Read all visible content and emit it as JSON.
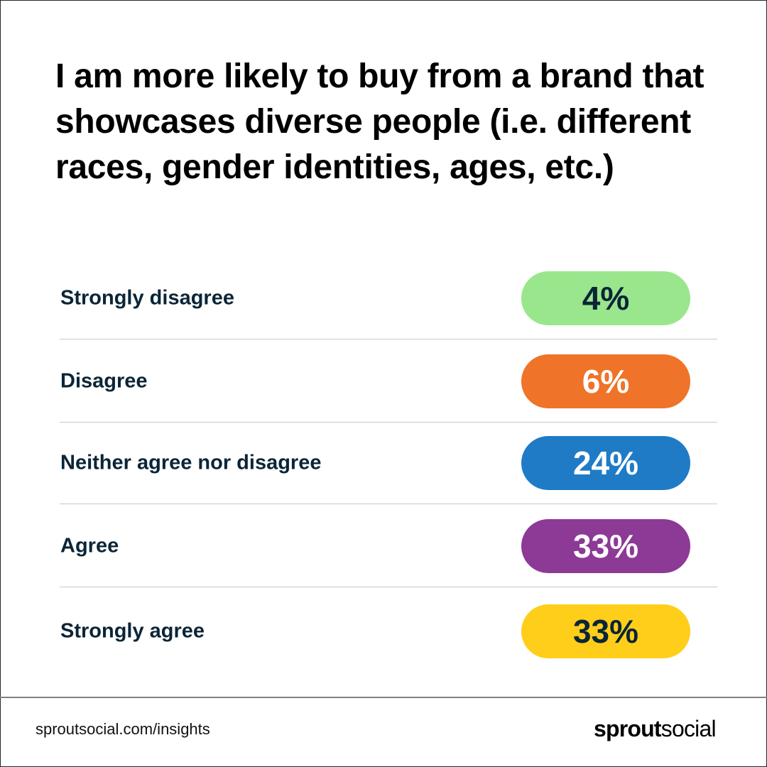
{
  "title": "I am more likely to buy from a brand that showcases diverse people (i.e. different races, gender identities, ages, etc.)",
  "chart_data": {
    "type": "table",
    "title": "I am more likely to buy from a brand that showcases diverse people (i.e. different races, gender identities, ages, etc.)",
    "rows": [
      {
        "label": "Strongly disagree",
        "value": 4,
        "display": "4%",
        "color": "#9ae68c",
        "text_color": "#0b2537"
      },
      {
        "label": "Disagree",
        "value": 6,
        "display": "6%",
        "color": "#ef7328",
        "text_color": "#ffffff"
      },
      {
        "label": "Neither agree nor disagree",
        "value": 24,
        "display": "24%",
        "color": "#1f7bc6",
        "text_color": "#ffffff"
      },
      {
        "label": "Agree",
        "value": 33,
        "display": "33%",
        "color": "#8c3a96",
        "text_color": "#ffffff"
      },
      {
        "label": "Strongly agree",
        "value": 33,
        "display": "33%",
        "color": "#ffce1b",
        "text_color": "#0b2537"
      }
    ]
  },
  "footer": {
    "url": "sproutsocial.com/insights",
    "logo_bold": "sprout",
    "logo_light": "social"
  }
}
